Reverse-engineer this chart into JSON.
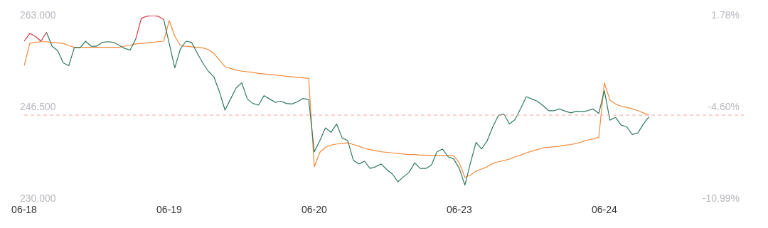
{
  "chart_data": {
    "type": "line",
    "categories": [
      "06-18",
      null,
      null,
      null,
      null,
      null,
      null,
      null,
      null,
      null,
      null,
      null,
      null,
      null,
      null,
      null,
      null,
      null,
      null,
      null,
      null,
      null,
      null,
      null,
      null,
      null,
      "06-19",
      null,
      null,
      null,
      null,
      null,
      null,
      null,
      null,
      null,
      null,
      null,
      null,
      null,
      null,
      null,
      null,
      null,
      null,
      null,
      null,
      null,
      null,
      null,
      null,
      null,
      "06-20",
      null,
      null,
      null,
      null,
      null,
      null,
      null,
      null,
      null,
      null,
      null,
      null,
      null,
      null,
      null,
      null,
      null,
      null,
      null,
      null,
      null,
      null,
      null,
      null,
      null,
      "06-23",
      null,
      null,
      null,
      null,
      null,
      null,
      null,
      null,
      null,
      null,
      null,
      null,
      null,
      null,
      null,
      null,
      null,
      null,
      null,
      null,
      null,
      null,
      null,
      null,
      null,
      "06-24",
      null,
      null,
      null,
      null,
      null,
      null,
      null,
      null,
      null,
      null,
      null,
      null,
      null,
      null,
      null,
      null,
      null,
      null,
      null,
      null,
      null,
      null,
      null,
      null,
      null
    ],
    "ylim": [
      230,
      263
    ],
    "yticks": [
      {
        "value": 230,
        "label": "230.000"
      },
      {
        "value": 246.5,
        "label": "246.500"
      },
      {
        "value": 263,
        "label": "263.000"
      }
    ],
    "y2lim": [
      -10.99,
      1.78
    ],
    "y2ticks": [
      {
        "value": -10.99,
        "label": "-10.99%"
      },
      {
        "value": -4.6,
        "label": "-4.60%"
      },
      {
        "value": 1.78,
        "label": "1.78%"
      }
    ],
    "grid": false,
    "legend": false,
    "ref_lines": [
      {
        "axis": "y",
        "value": 245.1,
        "color": "#f5a5a0",
        "line_style": "dashed"
      }
    ],
    "series": [
      {
        "color": "#d0353f",
        "values": [
          258.4,
          259.8,
          259.3,
          258.4,
          260.0,
          null,
          null,
          null,
          null,
          null,
          null,
          null,
          null,
          null,
          null,
          null,
          null,
          null,
          null,
          null,
          258.8,
          262.5,
          262.9,
          263.0,
          262.9,
          262.3,
          null,
          null,
          null,
          null,
          null,
          null,
          null,
          null,
          null,
          null,
          null,
          null,
          null,
          null,
          null,
          null,
          null,
          null,
          null,
          null,
          null,
          null,
          null,
          null,
          null,
          null,
          null,
          null,
          null,
          null,
          null,
          null,
          null,
          null,
          null,
          null,
          null,
          null,
          null,
          null,
          null,
          null,
          null,
          null,
          null,
          null,
          null,
          null,
          null,
          null,
          null,
          null,
          null,
          null,
          null,
          null,
          null,
          null,
          null,
          null,
          null,
          null,
          null,
          null,
          null,
          null,
          null,
          null,
          null,
          null,
          null,
          null,
          null,
          null,
          null,
          null,
          null,
          null,
          null,
          null,
          null,
          null,
          null,
          null,
          null,
          null,
          null,
          null,
          null,
          null,
          null,
          null,
          null,
          null,
          null,
          null,
          null,
          null,
          null,
          null,
          null,
          null,
          null,
          null
        ]
      },
      {
        "color": "#2e7a5c",
        "values": [
          null,
          null,
          null,
          null,
          260.0,
          257.5,
          256.7,
          254.5,
          254.0,
          257.3,
          257.2,
          258.4,
          257.5,
          257.5,
          258.2,
          258.3,
          258.2,
          257.7,
          257.1,
          256.8,
          258.8,
          null,
          null,
          null,
          null,
          262.3,
          258.0,
          253.6,
          257.0,
          258.4,
          258.2,
          256.3,
          254.5,
          253.0,
          252.0,
          249.3,
          246.0,
          248.0,
          250.0,
          250.9,
          248.0,
          247.2,
          246.9,
          248.6,
          248.0,
          247.4,
          247.6,
          247.2,
          247.1,
          247.5,
          248.1,
          247.9,
          238.5,
          240.5,
          242.8,
          242.0,
          243.5,
          241.0,
          240.5,
          237.0,
          236.3,
          236.8,
          235.5,
          235.8,
          236.3,
          235.3,
          234.5,
          233.1,
          234.0,
          234.8,
          236.5,
          235.5,
          235.5,
          236.1,
          238.5,
          239.0,
          237.6,
          237.2,
          235.5,
          232.5,
          236.5,
          240.2,
          239.0,
          240.5,
          243.0,
          245.0,
          245.3,
          243.5,
          244.3,
          246.3,
          248.4,
          248.0,
          247.6,
          246.8,
          245.9,
          245.9,
          246.2,
          245.8,
          245.5,
          245.8,
          245.7,
          245.9,
          246.2,
          245.4,
          249.5,
          244.2,
          244.7,
          243.3,
          243.0,
          241.6,
          241.9,
          243.5,
          244.8,
          null,
          null,
          null,
          null,
          null,
          null,
          null,
          null,
          null,
          null,
          null,
          null,
          null,
          null,
          null,
          null,
          null
        ]
      },
      {
        "color": "#f08a3c",
        "values": [
          254.0,
          258.0,
          258.2,
          258.3,
          258.3,
          258.2,
          258.1,
          258.0,
          257.6,
          257.3,
          257.3,
          257.3,
          257.3,
          257.3,
          257.3,
          257.3,
          257.3,
          257.3,
          257.5,
          257.7,
          257.9,
          258.0,
          258.1,
          258.2,
          258.3,
          258.4,
          262.1,
          259.3,
          257.6,
          257.5,
          257.4,
          257.3,
          257.2,
          256.9,
          256.2,
          255.0,
          253.8,
          253.5,
          253.2,
          253.0,
          252.9,
          252.8,
          252.6,
          252.5,
          252.4,
          252.3,
          252.2,
          252.1,
          252.0,
          251.9,
          251.8,
          251.7,
          235.8,
          238.4,
          239.3,
          239.7,
          239.9,
          240.0,
          240.1,
          239.8,
          239.5,
          239.1,
          238.9,
          238.7,
          238.5,
          238.4,
          238.3,
          238.2,
          238.1,
          238.0,
          238.0,
          237.9,
          237.9,
          237.8,
          237.8,
          237.8,
          237.8,
          237.8,
          236.5,
          233.9,
          234.3,
          235.0,
          235.4,
          235.8,
          236.4,
          236.7,
          236.9,
          237.2,
          237.6,
          237.9,
          238.3,
          238.6,
          238.9,
          239.2,
          239.3,
          239.4,
          239.5,
          239.7,
          239.8,
          240.0,
          240.3,
          240.6,
          240.8,
          241.1,
          250.9,
          247.8,
          247.1,
          246.7,
          246.5,
          246.2,
          245.9,
          245.5,
          245.1,
          null,
          null,
          null,
          null,
          null,
          null,
          null,
          null,
          null,
          null,
          null,
          null,
          null,
          null,
          null,
          null,
          null
        ]
      }
    ]
  }
}
